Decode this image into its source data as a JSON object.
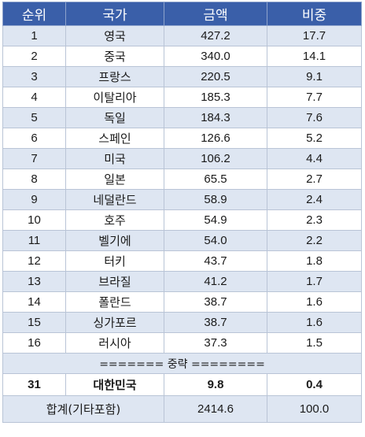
{
  "header": {
    "rank": "순위",
    "country": "국가",
    "amount": "금액",
    "share": "비중"
  },
  "rows": [
    {
      "rank": "1",
      "country": "영국",
      "amount": "427.2",
      "share": "17.7"
    },
    {
      "rank": "2",
      "country": "중국",
      "amount": "340.0",
      "share": "14.1"
    },
    {
      "rank": "3",
      "country": "프랑스",
      "amount": "220.5",
      "share": "9.1"
    },
    {
      "rank": "4",
      "country": "이탈리아",
      "amount": "185.3",
      "share": "7.7"
    },
    {
      "rank": "5",
      "country": "독일",
      "amount": "184.3",
      "share": "7.6"
    },
    {
      "rank": "6",
      "country": "스페인",
      "amount": "126.6",
      "share": "5.2"
    },
    {
      "rank": "7",
      "country": "미국",
      "amount": "106.2",
      "share": "4.4"
    },
    {
      "rank": "8",
      "country": "일본",
      "amount": "65.5",
      "share": "2.7"
    },
    {
      "rank": "9",
      "country": "네덜란드",
      "amount": "58.9",
      "share": "2.4"
    },
    {
      "rank": "10",
      "country": "호주",
      "amount": "54.9",
      "share": "2.3"
    },
    {
      "rank": "11",
      "country": "벨기에",
      "amount": "54.0",
      "share": "2.2"
    },
    {
      "rank": "12",
      "country": "터키",
      "amount": "43.7",
      "share": "1.8"
    },
    {
      "rank": "13",
      "country": "브라질",
      "amount": "41.2",
      "share": "1.7"
    },
    {
      "rank": "14",
      "country": "폴란드",
      "amount": "38.7",
      "share": "1.6"
    },
    {
      "rank": "15",
      "country": "싱가포르",
      "amount": "38.7",
      "share": "1.6"
    },
    {
      "rank": "16",
      "country": "러시아",
      "amount": "37.3",
      "share": "1.5"
    }
  ],
  "separator": "======= 중략 ========",
  "korea": {
    "rank": "31",
    "country": "대한민국",
    "amount": "9.8",
    "share": "0.4"
  },
  "total": {
    "label": "합계(기타포함)",
    "amount": "2414.6",
    "share": "100.0"
  },
  "colors": {
    "header_bg": "#3a5fa9",
    "header_text": "#ffffff",
    "stripe_bg": "#dee6f2",
    "plain_bg": "#ffffff",
    "border": "#b9c4d6"
  }
}
